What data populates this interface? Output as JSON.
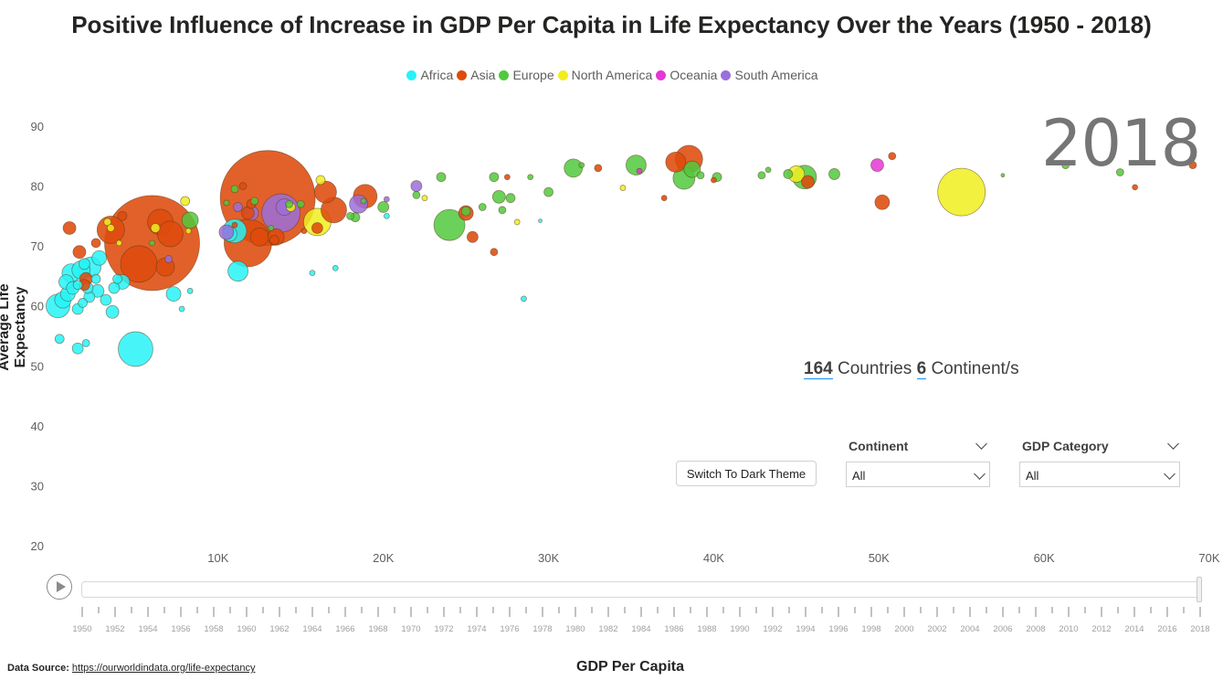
{
  "title": "Positive Influence of Increase in GDP Per Capita in Life Expectancy Over the Years (1950 - 2018)",
  "colors": {
    "Africa": "#27f3f7",
    "Asia": "#de4b0c",
    "Europe": "#51c93d",
    "North America": "#f0ee1f",
    "Oceania": "#e636d5",
    "South America": "#9b6fdb"
  },
  "year_display": "2018",
  "summary": {
    "countries": "164",
    "countries_label": "Countries",
    "continents": "6",
    "continents_label": "Continent/s"
  },
  "theme_button": "Switch To Dark Theme",
  "slicers": {
    "continent": {
      "label": "Continent",
      "value": "All"
    },
    "gdp_category": {
      "label": "GDP Category",
      "value": "All"
    }
  },
  "play_axis": {
    "labels": [
      "1950",
      "1952",
      "1954",
      "1956",
      "1958",
      "1960",
      "1962",
      "1964",
      "1966",
      "1968",
      "1970",
      "1972",
      "1974",
      "1976",
      "1978",
      "1980",
      "1982",
      "1984",
      "1986",
      "1988",
      "1990",
      "1992",
      "1994",
      "1996",
      "1998",
      "2000",
      "2002",
      "2004",
      "2006",
      "2008",
      "2010",
      "2012",
      "2014",
      "2016",
      "2018"
    ],
    "current": "2018"
  },
  "data_source": {
    "label": "Data Source:",
    "url_text": "https://ourworldindata.org/life-expectancy"
  },
  "chart_data": {
    "type": "scatter",
    "title": "Positive Influence of Increase in GDP Per Capita in Life Expectancy Over the Years (1950 - 2018)",
    "xlabel": "GDP Per Capita",
    "ylabel": "Average Life Expectancy",
    "xlim": [
      0,
      70000
    ],
    "ylim": [
      20,
      90
    ],
    "x_ticks": [
      10000,
      20000,
      30000,
      40000,
      50000,
      60000,
      70000
    ],
    "x_tick_labels": [
      "10K",
      "20K",
      "30K",
      "40K",
      "50K",
      "60K",
      "70K"
    ],
    "y_ticks": [
      20,
      30,
      40,
      50,
      60,
      70,
      80,
      90
    ],
    "grid": false,
    "legend_placement": "top-center",
    "series": [
      {
        "name": "Africa",
        "points": [
          [
            400,
            54.5,
            5
          ],
          [
            1500,
            52.9,
            6
          ],
          [
            2000,
            53.8,
            4
          ],
          [
            5000,
            52.8,
            19
          ],
          [
            300,
            60,
            13
          ],
          [
            600,
            61,
            9
          ],
          [
            900,
            62,
            8
          ],
          [
            1200,
            63,
            7
          ],
          [
            1500,
            59.5,
            6
          ],
          [
            1800,
            60.5,
            5
          ],
          [
            2200,
            61.5,
            6
          ],
          [
            2700,
            62.5,
            7
          ],
          [
            3200,
            61,
            6
          ],
          [
            3600,
            59,
            7
          ],
          [
            800,
            64,
            8
          ],
          [
            1100,
            65.5,
            10
          ],
          [
            1700,
            66,
            10
          ],
          [
            2300,
            66.5,
            11
          ],
          [
            2800,
            68,
            8
          ],
          [
            2600,
            64.5,
            5
          ],
          [
            1500,
            63.5,
            5
          ],
          [
            1900,
            67,
            6
          ],
          [
            3700,
            63,
            6
          ],
          [
            4200,
            64,
            8
          ],
          [
            8300,
            62.5,
            3
          ],
          [
            7800,
            59.5,
            3
          ],
          [
            7300,
            62,
            8
          ],
          [
            10700,
            72,
            8
          ],
          [
            11000,
            72.5,
            13
          ],
          [
            11200,
            65.8,
            11
          ],
          [
            15700,
            65.5,
            3
          ],
          [
            17100,
            66.3,
            3
          ],
          [
            20200,
            75,
            3
          ],
          [
            28500,
            61.2,
            3
          ],
          [
            29500,
            74.2,
            2
          ],
          [
            3900,
            64.5,
            5
          ],
          [
            2100,
            63,
            6
          ]
        ]
      },
      {
        "name": "Asia",
        "points": [
          [
            1000,
            73,
            7
          ],
          [
            1600,
            69,
            7
          ],
          [
            2000,
            64.5,
            7
          ],
          [
            1900,
            63.5,
            6
          ],
          [
            2600,
            70.5,
            5
          ],
          [
            3500,
            72.7,
            15
          ],
          [
            4200,
            75,
            5
          ],
          [
            5200,
            67,
            20
          ],
          [
            6000,
            70.5,
            52
          ],
          [
            6500,
            74,
            14
          ],
          [
            6800,
            66.5,
            10
          ],
          [
            7100,
            72,
            14
          ],
          [
            11500,
            80,
            4
          ],
          [
            11800,
            75.5,
            7
          ],
          [
            12000,
            77,
            5
          ],
          [
            12500,
            71.5,
            10
          ],
          [
            13000,
            78,
            52
          ],
          [
            13400,
            71,
            5
          ],
          [
            13500,
            71.5,
            9
          ],
          [
            11800,
            70.5,
            26
          ],
          [
            16000,
            73,
            6
          ],
          [
            16500,
            79,
            12
          ],
          [
            17000,
            76,
            14
          ],
          [
            18900,
            78.3,
            13
          ],
          [
            25000,
            75.5,
            8
          ],
          [
            25400,
            71.5,
            6
          ],
          [
            26700,
            69,
            4
          ],
          [
            27500,
            81.5,
            3
          ],
          [
            33000,
            83,
            4
          ],
          [
            37000,
            78,
            3
          ],
          [
            37700,
            84,
            11
          ],
          [
            38500,
            84.5,
            15
          ],
          [
            40000,
            81,
            3
          ],
          [
            45700,
            80.7,
            7
          ],
          [
            50200,
            77.3,
            8
          ],
          [
            50800,
            85,
            4
          ],
          [
            65500,
            79.8,
            3
          ],
          [
            69000,
            83.5,
            4
          ],
          [
            11000,
            73.5,
            3
          ],
          [
            15200,
            72.5,
            3
          ]
        ]
      },
      {
        "name": "Europe",
        "points": [
          [
            6000,
            70.5,
            3
          ],
          [
            8300,
            74.3,
            9
          ],
          [
            10500,
            77.2,
            3
          ],
          [
            11000,
            79.5,
            4
          ],
          [
            12200,
            77.5,
            4
          ],
          [
            13200,
            73,
            3
          ],
          [
            14300,
            77,
            4
          ],
          [
            15000,
            77,
            4
          ],
          [
            18000,
            75,
            4
          ],
          [
            18300,
            74.8,
            5
          ],
          [
            18800,
            77.5,
            3
          ],
          [
            20000,
            76.5,
            6
          ],
          [
            22000,
            78.5,
            4
          ],
          [
            23500,
            81.5,
            5
          ],
          [
            24000,
            73.5,
            17
          ],
          [
            25000,
            75.8,
            5
          ],
          [
            26000,
            76.5,
            4
          ],
          [
            26700,
            81.5,
            5
          ],
          [
            27000,
            78.2,
            7
          ],
          [
            27200,
            76,
            4
          ],
          [
            27700,
            78,
            5
          ],
          [
            28900,
            81.5,
            3
          ],
          [
            30000,
            79,
            5
          ],
          [
            31500,
            83,
            10
          ],
          [
            32000,
            83.5,
            3
          ],
          [
            35300,
            83.5,
            11
          ],
          [
            38200,
            81.3,
            12
          ],
          [
            38700,
            82.8,
            9
          ],
          [
            39200,
            81.8,
            4
          ],
          [
            40200,
            81.5,
            5
          ],
          [
            42900,
            81.8,
            4
          ],
          [
            43300,
            82.7,
            3
          ],
          [
            44500,
            82,
            5
          ],
          [
            45500,
            81.5,
            13
          ],
          [
            47300,
            82,
            6
          ],
          [
            57500,
            81.8,
            2
          ],
          [
            61300,
            83.5,
            4
          ],
          [
            64600,
            82.3,
            4
          ]
        ]
      },
      {
        "name": "North America",
        "points": [
          [
            3300,
            74,
            4
          ],
          [
            3500,
            73,
            4
          ],
          [
            4000,
            70.5,
            3
          ],
          [
            6200,
            73,
            5
          ],
          [
            8000,
            77.5,
            5
          ],
          [
            8200,
            72.5,
            3
          ],
          [
            14400,
            76.5,
            5
          ],
          [
            16000,
            74,
            15
          ],
          [
            16200,
            81,
            5
          ],
          [
            22500,
            78,
            3
          ],
          [
            28100,
            74,
            3
          ],
          [
            34500,
            79.7,
            3
          ],
          [
            45000,
            82,
            9
          ],
          [
            55000,
            79,
            26
          ]
        ]
      },
      {
        "name": "Oceania",
        "points": [
          [
            35500,
            82.5,
            3
          ],
          [
            49900,
            83.5,
            7
          ]
        ]
      },
      {
        "name": "South America",
        "points": [
          [
            7000,
            67.8,
            4
          ],
          [
            10500,
            72.3,
            8
          ],
          [
            11200,
            76.5,
            5
          ],
          [
            12000,
            75.5,
            8
          ],
          [
            13800,
            75.5,
            21
          ],
          [
            14000,
            76.5,
            9
          ],
          [
            18500,
            77,
            10
          ],
          [
            20200,
            77.8,
            3
          ],
          [
            22000,
            80,
            6
          ]
        ]
      }
    ]
  }
}
